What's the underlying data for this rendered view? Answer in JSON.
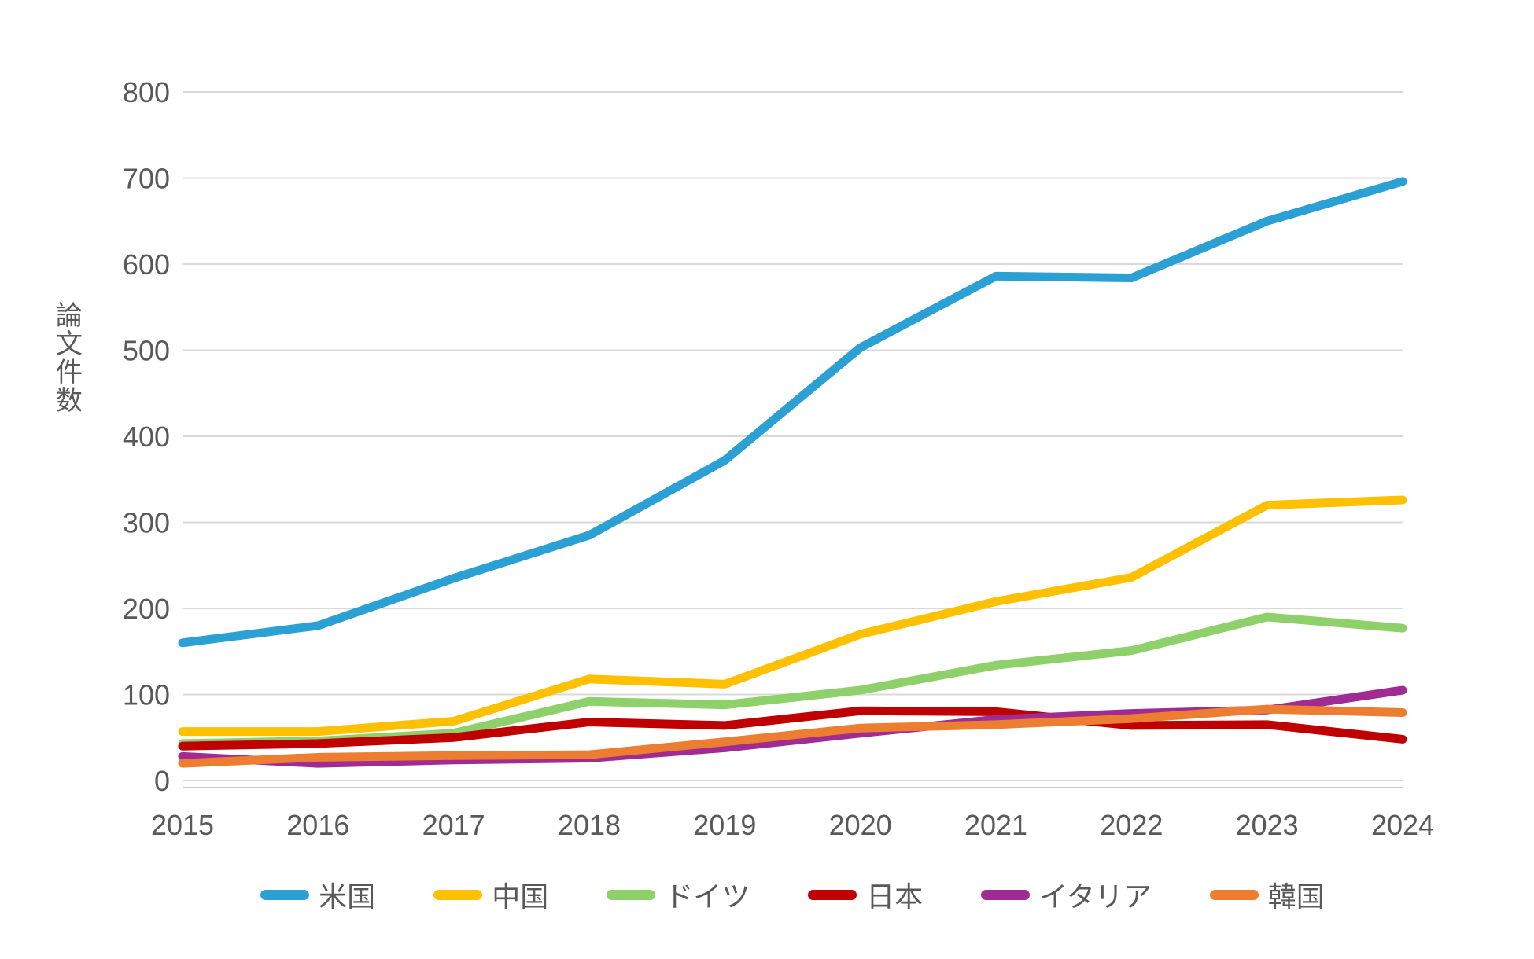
{
  "chart_data": {
    "type": "line",
    "title": "",
    "xlabel": "",
    "ylabel": "論文件数",
    "x": [
      "2015",
      "2016",
      "2017",
      "2018",
      "2019",
      "2020",
      "2021",
      "2022",
      "2023",
      "2024"
    ],
    "ylim": [
      0,
      800
    ],
    "yticks": [
      0,
      100,
      200,
      300,
      400,
      500,
      600,
      700,
      800
    ],
    "grid": "horizontal",
    "legend_position": "bottom",
    "series": [
      {
        "key": "usa",
        "name": "米国",
        "color": "#2AA0D5",
        "values": [
          160,
          180,
          235,
          285,
          372,
          503,
          586,
          584,
          650,
          696
        ]
      },
      {
        "key": "china",
        "name": "中国",
        "color": "#FFC000",
        "values": [
          57,
          57,
          69,
          118,
          112,
          170,
          208,
          236,
          320,
          326
        ]
      },
      {
        "key": "germany",
        "name": "ドイツ",
        "color": "#8ED069",
        "values": [
          43,
          46,
          55,
          92,
          88,
          105,
          134,
          151,
          190,
          177
        ]
      },
      {
        "key": "japan",
        "name": "日本",
        "color": "#C00000",
        "values": [
          40,
          43,
          50,
          68,
          64,
          81,
          80,
          64,
          65,
          48
        ]
      },
      {
        "key": "italy",
        "name": "イタリア",
        "color": "#A02B93",
        "values": [
          28,
          20,
          24,
          26,
          38,
          55,
          71,
          78,
          82,
          105
        ]
      },
      {
        "key": "korea",
        "name": "韓国",
        "color": "#ED7D31",
        "values": [
          20,
          27,
          29,
          30,
          45,
          61,
          65,
          72,
          83,
          79
        ]
      }
    ],
    "colors": {
      "gridline": "#D9D9D9",
      "axis_line": "#C9C9C9",
      "tick_text": "#595959",
      "background": "#FFFFFF"
    }
  }
}
